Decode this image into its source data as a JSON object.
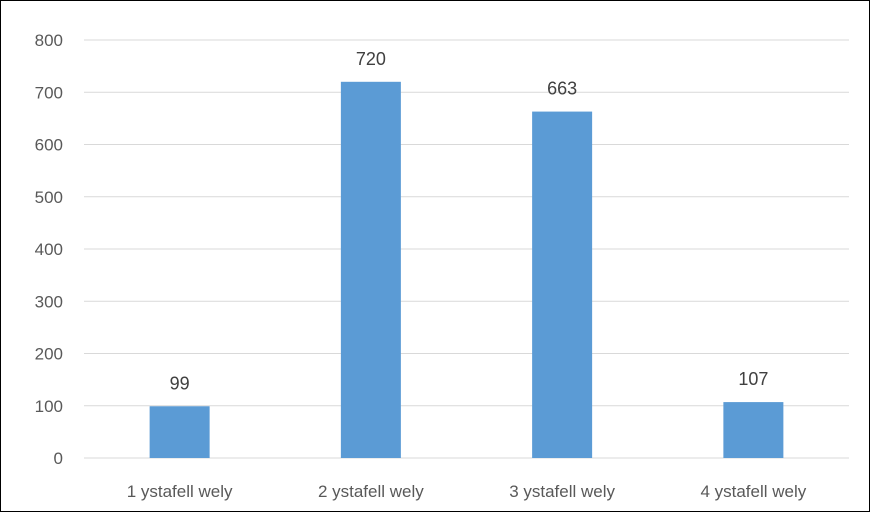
{
  "chart_data": {
    "type": "bar",
    "title": "",
    "xlabel": "",
    "ylabel": "",
    "categories": [
      "1 ystafell wely",
      "2 ystafell wely",
      "3 ystafell wely",
      "4 ystafell wely"
    ],
    "values": [
      99,
      720,
      663,
      107
    ],
    "data_labels": [
      "99",
      "720",
      "663",
      "107"
    ],
    "ylim": [
      0,
      800
    ],
    "yticks": [
      "0",
      "100",
      "200",
      "300",
      "400",
      "500",
      "600",
      "700",
      "800"
    ],
    "grid": true,
    "legend": "none",
    "colors": {
      "bar": "#5B9BD5",
      "grid": "#D9D9D9",
      "text": "#595959"
    }
  }
}
